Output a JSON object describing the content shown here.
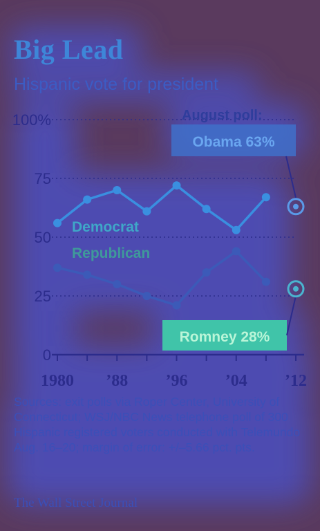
{
  "title": "Big Lead",
  "subtitle": "Hispanic vote for president",
  "sources": "Sources: exit polls via Roper Center, University of Connecticut; WSJ/NBC News telephone poll of 300 Hispanic registered voters conducted with Telemundo Aug. 16–20; margin of error: +/–5.66 pct. pts.",
  "credit": "The Wall Street Journal",
  "colors": {
    "democrat": "#3a8fe0",
    "republican": "#3c5ab8",
    "obama_box": "#3f70c9",
    "romney_box": "#3fd1a8",
    "axis": "#2c2c8c"
  },
  "chart_data": {
    "type": "line",
    "title": "Big Lead",
    "subtitle": "Hispanic vote for president",
    "x": [
      1980,
      1984,
      1988,
      1992,
      1996,
      2000,
      2004,
      2008
    ],
    "x_tick_values": [
      1980,
      1988,
      1996,
      2004,
      2012
    ],
    "x_tick_labels": [
      "1980",
      "’88",
      "’96",
      "’04",
      "’12"
    ],
    "y_ticks": [
      0,
      25,
      50,
      75,
      100
    ],
    "y_tick_labels": [
      "0",
      "25",
      "50",
      "75",
      "100%"
    ],
    "ylim": [
      0,
      100
    ],
    "xlim": [
      1980,
      2012
    ],
    "series": [
      {
        "name": "Democrat",
        "values": [
          56,
          66,
          70,
          61,
          72,
          62,
          53,
          67
        ]
      },
      {
        "name": "Republican",
        "values": [
          37,
          34,
          30,
          25,
          21,
          35,
          44,
          31
        ]
      }
    ],
    "poll_points": [
      {
        "x": 2012,
        "y": 63,
        "label": "Obama 63%"
      },
      {
        "x": 2012,
        "y": 28,
        "label": "Romney 28%"
      }
    ],
    "poll_header": "August poll:"
  }
}
